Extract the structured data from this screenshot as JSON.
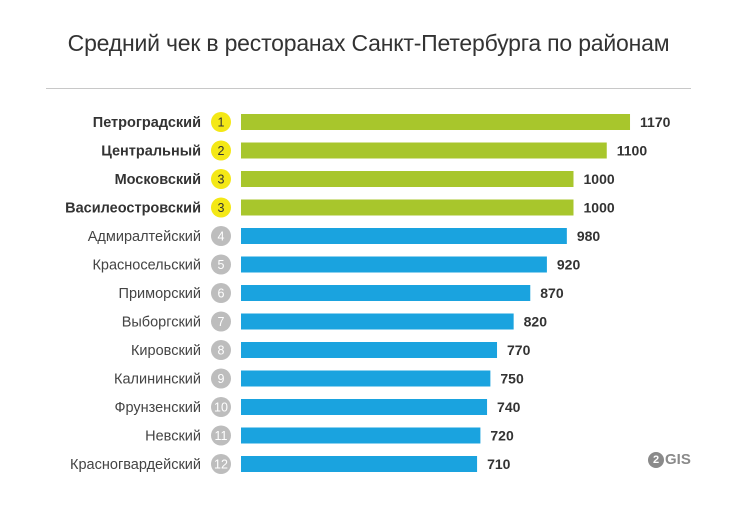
{
  "chart_data": {
    "type": "bar",
    "orientation": "horizontal",
    "title": "Средний чек в ресторанах Санкт-Петербурга по районам",
    "xlim": [
      0,
      1200
    ],
    "grid": false,
    "legend": "none",
    "categories": [
      "Петроградский",
      "Центральный",
      "Московский",
      "Василеостровский",
      "Адмиралтейский",
      "Красносельский",
      "Приморский",
      "Выборгский",
      "Кировский",
      "Калининский",
      "Фрунзенский",
      "Невский",
      "Красногвардейский"
    ],
    "ranks": [
      "1",
      "2",
      "3",
      "3",
      "4",
      "5",
      "6",
      "7",
      "8",
      "9",
      "10",
      "11",
      "12"
    ],
    "values": [
      1170,
      1100,
      1000,
      1000,
      980,
      920,
      870,
      820,
      770,
      750,
      740,
      720,
      710
    ],
    "highlight_count": 4,
    "colors": {
      "top_bar": "#a8c62c",
      "bar": "#1aa3df",
      "top_badge": "#f4e816",
      "badge": "#bdbdbd",
      "top_badge_text": "#333333",
      "badge_text": "#ffffff"
    }
  },
  "brand": {
    "mark": "2",
    "text": "GIS"
  }
}
